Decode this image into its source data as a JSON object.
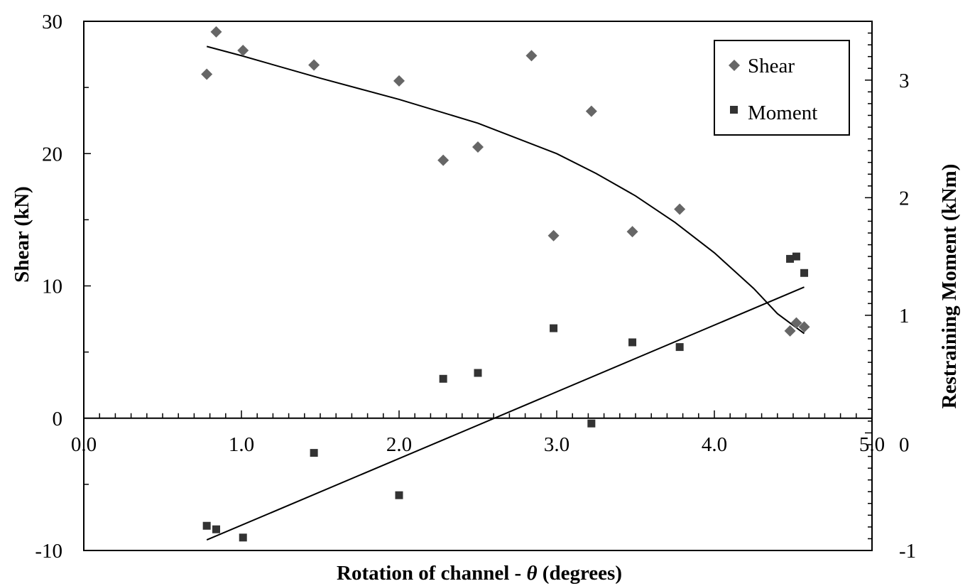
{
  "chart_data": {
    "type": "scatter",
    "title": "",
    "xlabel_main": "Rotation of channel - ",
    "xlabel_symbol": "θ",
    "xlabel_unit": " (degrees)",
    "ylabel": "Shear (kN)",
    "y2label": "Restraining Moment (kNm)",
    "xlim": [
      0,
      5
    ],
    "ylim": [
      -10,
      30
    ],
    "y2lim": [
      -1,
      3.5
    ],
    "x_ticks": [
      "0.0",
      "1.0",
      "2.0",
      "3.0",
      "4.0",
      "5.0"
    ],
    "y_ticks": [
      "-10",
      "0",
      "10",
      "20",
      "30"
    ],
    "y2_ticks": [
      "-1",
      "0",
      "1",
      "2",
      "3"
    ],
    "legend_position": "top-right",
    "grid": false,
    "series": [
      {
        "name": "Shear",
        "marker": "diamond",
        "axis": "left",
        "color": "#666666",
        "points": [
          [
            0.78,
            26.0
          ],
          [
            0.84,
            29.2
          ],
          [
            1.01,
            27.8
          ],
          [
            1.46,
            26.7
          ],
          [
            2.0,
            25.5
          ],
          [
            2.28,
            19.5
          ],
          [
            2.5,
            20.5
          ],
          [
            2.84,
            27.4
          ],
          [
            2.98,
            13.8
          ],
          [
            3.22,
            23.2
          ],
          [
            3.48,
            14.1
          ],
          [
            3.78,
            15.8
          ],
          [
            4.48,
            6.6
          ],
          [
            4.52,
            7.2
          ],
          [
            4.57,
            6.9
          ]
        ]
      },
      {
        "name": "Moment",
        "marker": "square",
        "axis": "right",
        "color": "#333333",
        "points": [
          [
            0.78,
            -0.79
          ],
          [
            0.84,
            -0.82
          ],
          [
            1.01,
            -0.89
          ],
          [
            1.46,
            -0.17
          ],
          [
            2.0,
            -0.53
          ],
          [
            2.28,
            0.46
          ],
          [
            2.5,
            0.51
          ],
          [
            2.98,
            0.89
          ],
          [
            3.22,
            0.08
          ],
          [
            3.48,
            0.77
          ],
          [
            3.78,
            0.73
          ],
          [
            4.48,
            1.48
          ],
          [
            4.52,
            1.5
          ],
          [
            4.57,
            1.36
          ]
        ]
      }
    ],
    "trendlines": [
      {
        "for": "Shear",
        "axis": "left",
        "points": [
          [
            0.78,
            28.1
          ],
          [
            1.0,
            27.4
          ],
          [
            1.5,
            25.7
          ],
          [
            2.0,
            24.1
          ],
          [
            2.5,
            22.3
          ],
          [
            3.0,
            20.0
          ],
          [
            3.25,
            18.5
          ],
          [
            3.5,
            16.8
          ],
          [
            3.75,
            14.8
          ],
          [
            4.0,
            12.5
          ],
          [
            4.25,
            9.8
          ],
          [
            4.4,
            7.9
          ],
          [
            4.57,
            6.4
          ]
        ]
      },
      {
        "for": "Moment",
        "axis": "right",
        "points": [
          [
            0.78,
            -0.91
          ],
          [
            4.57,
            1.24
          ]
        ]
      }
    ]
  }
}
